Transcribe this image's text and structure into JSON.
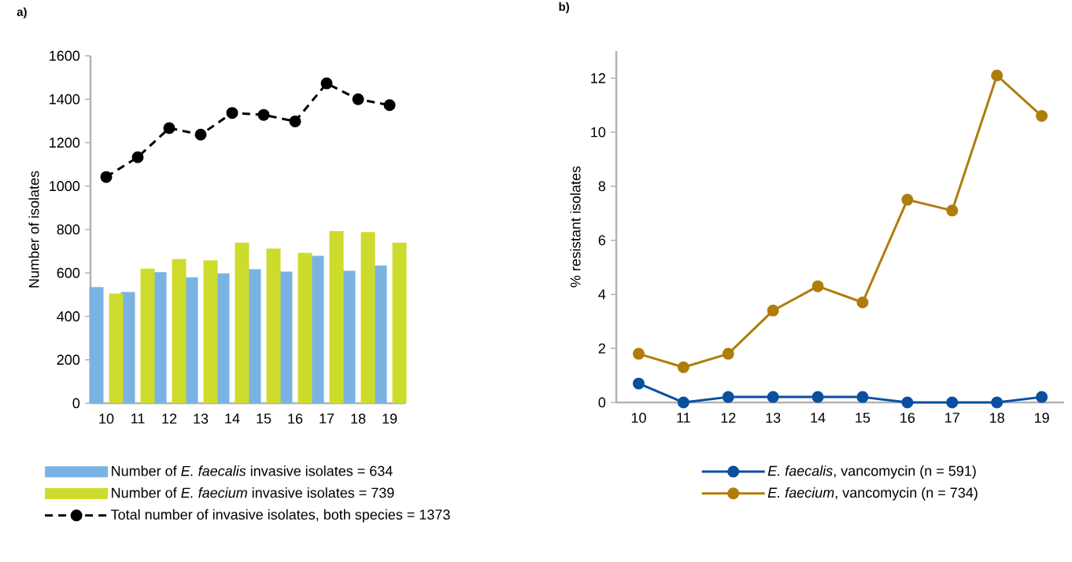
{
  "chart_data": [
    {
      "type": "bar",
      "title": "a)",
      "ylabel": "Number of isolates",
      "categories": [
        "10",
        "11",
        "12",
        "13",
        "14",
        "15",
        "16",
        "17",
        "18",
        "19"
      ],
      "series": [
        {
          "name": "Number of *E. faecalis* invasive isolates = 634",
          "color": "#7ab3e2",
          "values": [
            535,
            512,
            604,
            580,
            598,
            617,
            606,
            679,
            610,
            634
          ]
        },
        {
          "name": "Number of *E. faecium* invasive isolates = 739",
          "color": "#cddc2c",
          "values": [
            505,
            620,
            664,
            658,
            739,
            712,
            692,
            793,
            788,
            739
          ]
        },
        {
          "name": "Total number of invasive isolates, both species = 1373",
          "type": "line",
          "color": "#000000",
          "values": [
            1042,
            1133,
            1267,
            1237,
            1337,
            1328,
            1298,
            1473,
            1400,
            1373
          ]
        }
      ],
      "ylim": [
        0,
        1600
      ],
      "yticks": [
        0,
        200,
        400,
        600,
        800,
        1000,
        1200,
        1400,
        1600
      ],
      "legend": "bottom",
      "marker": "circle",
      "line_style": "dashed"
    },
    {
      "type": "line",
      "title": "b)",
      "ylabel": "% resistant isolates",
      "categories": [
        "10",
        "11",
        "12",
        "13",
        "14",
        "15",
        "16",
        "17",
        "18",
        "19"
      ],
      "series": [
        {
          "name": "*E. faecalis*, vancomycin (n = 591)",
          "color": "#0a4fa0",
          "values": [
            0.7,
            0,
            0.2,
            0.2,
            0.2,
            0.2,
            0,
            0,
            0,
            0.2
          ]
        },
        {
          "name": "*E. faecium*, vancomycin (n = 734)",
          "color": "#b07d0a",
          "values": [
            1.8,
            1.3,
            1.8,
            3.4,
            4.3,
            3.7,
            7.5,
            7.1,
            12.1,
            10.6
          ]
        }
      ],
      "ylim": [
        0,
        13
      ],
      "yticks": [
        0,
        2,
        4,
        6,
        8,
        10,
        12
      ],
      "legend": "bottom",
      "marker": "circle",
      "line_style": "solid"
    }
  ]
}
